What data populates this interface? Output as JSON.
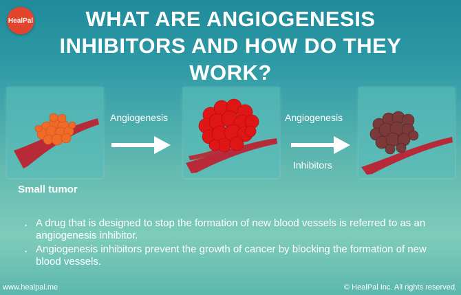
{
  "brand": {
    "logo_text": "HealPal"
  },
  "title": "WHAT ARE ANGIOGENESIS INHIBITORS AND HOW DO THEY WORK?",
  "diagram": {
    "arrow1_label": "Angiogenesis",
    "arrow2_label_top": "Angiogenesis",
    "arrow2_label_bottom": "Inhibitors",
    "panel1_caption": "Small tumor",
    "colors": {
      "small_tumor": "#f06a2a",
      "large_tumor": "#e01515",
      "inhibited_tumor": "#7a3a3a",
      "vessel": "#c21b2a"
    }
  },
  "bullets": [
    "A drug that is designed to stop the formation of new blood vessels is referred to as an angiogenesis inhibitor.",
    "Angiogenesis inhibitors prevent the growth of cancer by blocking the formation of new blood vessels."
  ],
  "footer": {
    "website": "www.healpal.me",
    "copyright": "© HealPal Inc. All rights reserved."
  }
}
